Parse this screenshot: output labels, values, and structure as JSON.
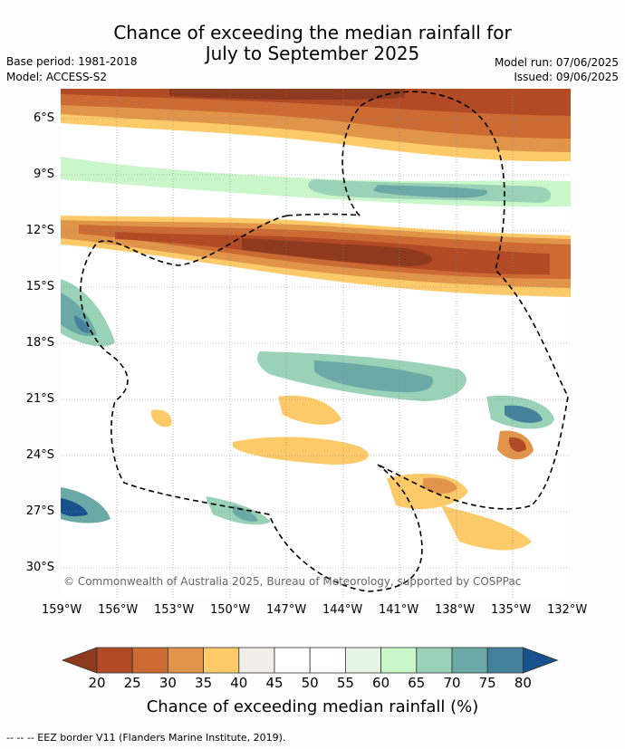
{
  "title": {
    "line1": "Chance of exceeding the median rainfall for",
    "line2": "July to September 2025"
  },
  "meta": {
    "base_period": "Base period: 1981-2018",
    "model": "Model: ACCESS-S2",
    "model_run": "Model run: 07/06/2025",
    "issued": "Issued: 09/06/2025"
  },
  "map": {
    "copyright": "© Commonwealth of Australia 2025, Bureau of Meteorology, supported by COSPPac",
    "lon_ticks": [
      "159°W",
      "156°W",
      "153°W",
      "150°W",
      "147°W",
      "144°W",
      "141°W",
      "138°W",
      "135°W",
      "132°W"
    ],
    "lat_ticks": [
      "6°S",
      "9°S",
      "12°S",
      "15°S",
      "18°S",
      "21°S",
      "24°S",
      "27°S",
      "30°S"
    ]
  },
  "colorbar": {
    "labels": [
      "20",
      "25",
      "30",
      "35",
      "40",
      "45",
      "50",
      "55",
      "60",
      "65",
      "70",
      "75",
      "80"
    ],
    "colors": [
      "#8e3a1f",
      "#b24a25",
      "#cc6a33",
      "#e0954a",
      "#fdca6a",
      "#efeee8",
      "#ffffff",
      "#ffffff",
      "#e7f5e6",
      "#c9f7c9",
      "#9ad2b7",
      "#6aa9a6",
      "#43819d",
      "#17528e"
    ],
    "title": "Chance of exceeding median rainfall (%)"
  },
  "footer": {
    "eez_note": "--  --  -- EEZ border V11 (Flanders Marine Institute, 2019)."
  }
}
